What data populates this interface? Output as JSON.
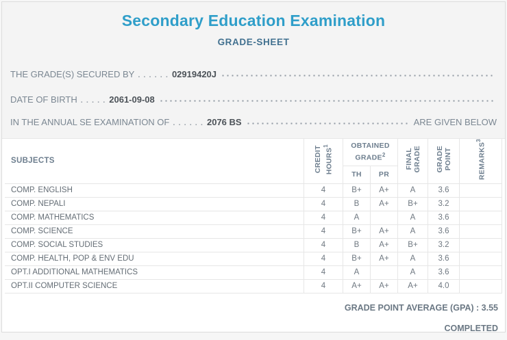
{
  "colors": {
    "title_accent": "#2f9ec9",
    "subtitle": "#41708f",
    "body_text": "#7b8792",
    "value_text": "#4c5258",
    "table_border": "#e6e6e6"
  },
  "header": {
    "title": "Secondary Education Examination",
    "subtitle": "GRADE-SHEET"
  },
  "info_lines": [
    {
      "label": "THE GRADE(S) SECURED BY",
      "dots": ". . . . . .",
      "value": "02919420J",
      "suffix": ""
    },
    {
      "label": "DATE OF BIRTH",
      "dots": ". . . . .",
      "value": "2061-09-08",
      "suffix": ""
    },
    {
      "label": "IN THE ANNUAL SE EXAMINATION OF",
      "dots": ". . . . . .",
      "value": "2076 BS",
      "suffix": "ARE GIVEN BELOW"
    }
  ],
  "table": {
    "header": {
      "subjects": "SUBJECTS",
      "credit_hours": {
        "line1": "CREDIT",
        "line2": "HOURS",
        "sup": "1"
      },
      "obtained_grade": {
        "line1": "OBTAINED",
        "line2": "GRADE",
        "sup": "2"
      },
      "th": "TH",
      "pr": "PR",
      "final_grade": {
        "line1": "FINAL",
        "line2": "GRADE"
      },
      "grade_point": {
        "line1": "GRADE",
        "line2": "POINT"
      },
      "remarks": {
        "label": "REMARKS",
        "sup": "3"
      }
    },
    "rows": [
      {
        "subject": "COMP. ENGLISH",
        "credit": "4",
        "th": "B+",
        "pr": "A+",
        "final": "A",
        "gp": "3.6",
        "remarks": ""
      },
      {
        "subject": "COMP. NEPALI",
        "credit": "4",
        "th": "B",
        "pr": "A+",
        "final": "B+",
        "gp": "3.2",
        "remarks": ""
      },
      {
        "subject": "COMP. MATHEMATICS",
        "credit": "4",
        "th": "A",
        "pr": "",
        "final": "A",
        "gp": "3.6",
        "remarks": ""
      },
      {
        "subject": "COMP. SCIENCE",
        "credit": "4",
        "th": "B+",
        "pr": "A+",
        "final": "A",
        "gp": "3.6",
        "remarks": ""
      },
      {
        "subject": "COMP. SOCIAL STUDIES",
        "credit": "4",
        "th": "B",
        "pr": "A+",
        "final": "B+",
        "gp": "3.2",
        "remarks": ""
      },
      {
        "subject": "COMP. HEALTH, POP & ENV EDU",
        "credit": "4",
        "th": "B+",
        "pr": "A+",
        "final": "A",
        "gp": "3.6",
        "remarks": ""
      },
      {
        "subject": "OPT.I ADDITIONAL MATHEMATICS",
        "credit": "4",
        "th": "A",
        "pr": "",
        "final": "A",
        "gp": "3.6",
        "remarks": ""
      },
      {
        "subject": "OPT.II COMPUTER SCIENCE",
        "credit": "4",
        "th": "A+",
        "pr": "A+",
        "final": "A+",
        "gp": "4.0",
        "remarks": ""
      }
    ]
  },
  "summary": {
    "gpa_label": "GRADE POINT AVERAGE (GPA)",
    "gpa_separator": " : ",
    "gpa_value": "3.55",
    "status": "COMPLETED"
  }
}
